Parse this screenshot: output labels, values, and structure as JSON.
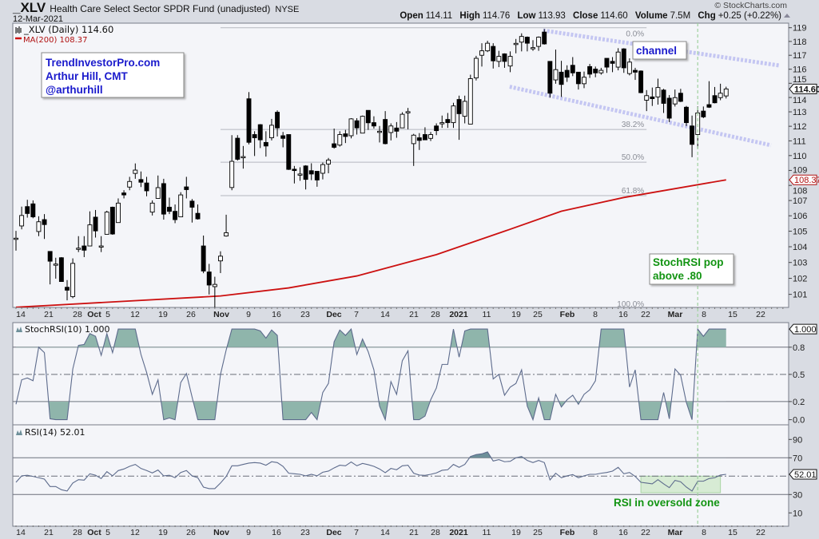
{
  "header": {
    "symbol": "_XLV",
    "name": "Health Care Select Sector SPDR Fund (unadjusted)",
    "exchange": "NYSE",
    "date": "12-Mar-2021",
    "brand": "© StockCharts.com",
    "open_label": "Open",
    "open": "114.11",
    "high_label": "High",
    "high": "114.76",
    "low_label": "Low",
    "low": "113.93",
    "close_label": "Close",
    "close": "114.60",
    "volume_label": "Volume",
    "volume": "7.5M",
    "chg_label": "Chg",
    "chg": "+0.25 (+0.22%)",
    "chg_icon": "up-triangle-icon"
  },
  "legend": {
    "price": "_XLV (Daily) 114.60",
    "ma": "MA(200) 108.37",
    "stochrsi": "StochRSI(10) 1.000",
    "rsi": "RSI(14) 52.01"
  },
  "colors": {
    "candle_down": "#000000",
    "candle_up": "#ffffff",
    "ma": "#cc1111",
    "indicator_line": "#5d6b8c",
    "indicator_fill": "#8fb5ab",
    "channel": "#c4c6f2",
    "marker_line": "#9fd29f",
    "annotation_blue": "#1a1acc",
    "annotation_green": "#129412"
  },
  "annotations": {
    "author_lines": [
      "TrendInvestorPro.com",
      "Arthur Hill, CMT",
      "@arthurhill"
    ],
    "channel": "channel",
    "stoch_lines": [
      "StochRSI pop",
      "above .80"
    ],
    "rsi_note": "RSI in oversold zone"
  },
  "chart_data": [
    {
      "type": "candlestick",
      "title": "_XLV (Daily)",
      "scale": "log",
      "ylim": [
        100,
        119.3
      ],
      "yticks": [
        101,
        102,
        103,
        104,
        105,
        106,
        107,
        108,
        109,
        110,
        111,
        112,
        113,
        114,
        115,
        116,
        117,
        118,
        119
      ],
      "last_price_label": "114.60",
      "ma_label": "108.37",
      "xticks": [
        "14",
        "21",
        "28",
        "Oct",
        "5",
        "12",
        "19",
        "26",
        "Nov",
        "9",
        "16",
        "23",
        "Dec",
        "7",
        "14",
        "21",
        "28",
        "2021",
        "11",
        "19",
        "25",
        "Feb",
        "8",
        "16",
        "22",
        "Mar",
        "8",
        "15",
        "22"
      ],
      "ohlc": [
        [
          104.55,
          105.02,
          103.75,
          104.55
        ],
        [
          105.34,
          106.6,
          105.12,
          106.02
        ],
        [
          106.6,
          107.05,
          105.88,
          106.15
        ],
        [
          106.78,
          107.01,
          105.84,
          105.93
        ],
        [
          104.98,
          105.97,
          104.68,
          105.61
        ],
        [
          105.75,
          106.11,
          104.5,
          105.43
        ],
        [
          103.7,
          103.7,
          101.62,
          103.08
        ],
        [
          102.9,
          103.3,
          101.98,
          102.9
        ],
        [
          103.3,
          103.34,
          101.8,
          101.8
        ],
        [
          101.44,
          101.89,
          100.63,
          101.26
        ],
        [
          100.86,
          103.26,
          100.76,
          102.94
        ],
        [
          103.91,
          104.68,
          103.66,
          103.91
        ],
        [
          104.05,
          104.68,
          103.34,
          103.78
        ],
        [
          104.05,
          106.29,
          104.05,
          105.41
        ],
        [
          105.91,
          106.38,
          104.59,
          105.02
        ],
        [
          104.05,
          104.68,
          103.66,
          104.05
        ],
        [
          104.8,
          106.33,
          104.8,
          106.24
        ],
        [
          106.56,
          106.6,
          104.77,
          104.82
        ],
        [
          105.56,
          107.14,
          105.56,
          106.83
        ],
        [
          107.5,
          107.68,
          107.14,
          107.37
        ],
        [
          107.89,
          108.57,
          107.68,
          108.26
        ],
        [
          108.8,
          109.47,
          108.44,
          109.02
        ],
        [
          108.39,
          108.93,
          107.89,
          108.21
        ],
        [
          108.16,
          108.57,
          107.28,
          107.64
        ],
        [
          106.24,
          107.01,
          106.02,
          106.83
        ],
        [
          107.14,
          108.66,
          107.14,
          107.85
        ],
        [
          108.12,
          108.44,
          105.75,
          106.11
        ],
        [
          106.56,
          107.19,
          106.11,
          106.29
        ],
        [
          106.29,
          106.74,
          105.52,
          105.75
        ],
        [
          105.93,
          107.55,
          105.93,
          107.37
        ],
        [
          107.9,
          108.57,
          107.14,
          107.72
        ],
        [
          106.96,
          107.1,
          105.56,
          106.56
        ],
        [
          106.16,
          106.74,
          105.75,
          105.8
        ],
        [
          104.05,
          104.72,
          102.32,
          102.46
        ],
        [
          102.4,
          102.91,
          100.99,
          101.58
        ],
        [
          101.48,
          102.1,
          100.18,
          101.62
        ],
        [
          103.1,
          103.71,
          102.33,
          103.4
        ],
        [
          104.69,
          106.07,
          104.65,
          104.9
        ],
        [
          107.86,
          111.39,
          107.68,
          109.61
        ],
        [
          111.18,
          111.39,
          109.66,
          109.75
        ],
        [
          109.93,
          110.65,
          109.12,
          109.93
        ],
        [
          113.91,
          114.38,
          110.76,
          110.9
        ],
        [
          111.43,
          111.66,
          109.97,
          111.21
        ],
        [
          112.11,
          112.15,
          110.51,
          111.07
        ],
        [
          110.89,
          111.66,
          109.93,
          110.65
        ],
        [
          111.21,
          112.51,
          111.03,
          112.07
        ],
        [
          112.97,
          113.1,
          111.3,
          111.89
        ],
        [
          111.35,
          111.61,
          110.56,
          111.17
        ],
        [
          111.43,
          111.43,
          109.03,
          109.07
        ],
        [
          109.08,
          109.3,
          108.13,
          108.99
        ],
        [
          108.76,
          109.21,
          108.31,
          108.76
        ],
        [
          109.3,
          109.35,
          107.73,
          108.4
        ],
        [
          108.98,
          109.48,
          108.35,
          108.76
        ],
        [
          108.94,
          108.94,
          107.91,
          108.36
        ],
        [
          108.81,
          109.53,
          108.4,
          109.39
        ],
        [
          109.43,
          109.84,
          108.81,
          109.7
        ],
        [
          110.8,
          111.84,
          110.47,
          110.56
        ],
        [
          110.71,
          111.66,
          110.61,
          111.43
        ],
        [
          111.48,
          111.75,
          110.85,
          111.3
        ],
        [
          111.35,
          112.56,
          111.17,
          112.51
        ],
        [
          112.38,
          112.56,
          111.43,
          111.89
        ],
        [
          111.53,
          112.74,
          111.53,
          112.69
        ],
        [
          113.1,
          113.1,
          111.75,
          112.24
        ],
        [
          112.25,
          112.69,
          111.84,
          112.02
        ],
        [
          111.66,
          112.02,
          110.89,
          111.66
        ],
        [
          112.47,
          113.05,
          110.76,
          110.81
        ],
        [
          111.57,
          112.2,
          111.03,
          112.02
        ],
        [
          111.88,
          112.29,
          111.21,
          111.66
        ],
        [
          111.89,
          112.97,
          111.89,
          112.83
        ],
        [
          113.01,
          113.27,
          111.79,
          113.01
        ],
        [
          110.81,
          111.48,
          109.3,
          111.39
        ],
        [
          111.21,
          111.53,
          110.38,
          111.03
        ],
        [
          111.43,
          111.93,
          111.07,
          111.07
        ],
        [
          111.17,
          111.61,
          110.99,
          111.43
        ],
        [
          112.02,
          112.2,
          111.39,
          111.7
        ],
        [
          112.25,
          112.74,
          111.89,
          112.25
        ],
        [
          112.47,
          112.92,
          111.89,
          112.25
        ],
        [
          112.25,
          113.63,
          111.89,
          113.41
        ],
        [
          113.86,
          114.13,
          111.07,
          112.87
        ],
        [
          112.69,
          114.13,
          112.2,
          113.73
        ],
        [
          112.15,
          115.61,
          112.15,
          115.33
        ],
        [
          115.38,
          116.96,
          115.2,
          116.78
        ],
        [
          117.0,
          117.87,
          116.19,
          117.32
        ],
        [
          117.32,
          118.05,
          117.23,
          117.87
        ],
        [
          117.64,
          117.87,
          116.05,
          116.6
        ],
        [
          116.56,
          117.32,
          116.15,
          116.92
        ],
        [
          117.1,
          117.14,
          116.1,
          116.56
        ],
        [
          116.23,
          117.28,
          115.79,
          116.92
        ],
        [
          117.86,
          118.18,
          117.14,
          117.86
        ],
        [
          117.95,
          118.59,
          117.28,
          118.36
        ],
        [
          118.31,
          118.36,
          117.28,
          117.87
        ],
        [
          117.55,
          118.09,
          117.32,
          117.55
        ],
        [
          117.64,
          118.36,
          117.32,
          118.31
        ],
        [
          118.68,
          118.9,
          117.77,
          117.82
        ],
        [
          116.56,
          116.56,
          113.99,
          114.3
        ],
        [
          115.24,
          117.41,
          114.97,
          115.97
        ],
        [
          115.79,
          116.6,
          114.04,
          114.92
        ],
        [
          115.92,
          116.28,
          115.1,
          115.43
        ],
        [
          116.28,
          116.87,
          115.51,
          115.74
        ],
        [
          115.79,
          115.79,
          114.56,
          114.97
        ],
        [
          114.97,
          115.83,
          114.66,
          115.43
        ],
        [
          116.19,
          116.38,
          115.38,
          115.65
        ],
        [
          116.01,
          116.19,
          115.43,
          115.74
        ],
        [
          115.74,
          116.1,
          115.61,
          115.92
        ],
        [
          116.78,
          116.78,
          115.74,
          116.15
        ],
        [
          116.56,
          116.87,
          115.79,
          116.42
        ],
        [
          116.15,
          117.51,
          115.92,
          117.23
        ],
        [
          117.46,
          117.51,
          115.74,
          116.1
        ],
        [
          115.69,
          116.78,
          115.56,
          116.51
        ],
        [
          115.92,
          116.1,
          115.24,
          115.79
        ],
        [
          115.87,
          115.92,
          114.3,
          114.34
        ],
        [
          113.81,
          114.52,
          113.05,
          114.13
        ],
        [
          114.04,
          114.7,
          113.41,
          113.92
        ],
        [
          114.04,
          115.33,
          113.5,
          114.7
        ],
        [
          114.52,
          114.61,
          112.92,
          113.59
        ],
        [
          113.95,
          114.17,
          112.29,
          112.56
        ],
        [
          113.55,
          114.56,
          113.37,
          113.99
        ],
        [
          114.3,
          114.61,
          113.68,
          113.73
        ],
        [
          113.32,
          113.41,
          112.02,
          112.25
        ],
        [
          112.02,
          112.74,
          109.89,
          110.76
        ],
        [
          111.43,
          113.37,
          110.49,
          112.92
        ],
        [
          113.05,
          113.37,
          112.56,
          112.65
        ],
        [
          113.5,
          115.15,
          113.27,
          113.32
        ],
        [
          114.13,
          114.74,
          113.59,
          113.63
        ],
        [
          113.99,
          114.97,
          113.81,
          114.3
        ],
        [
          114.11,
          114.76,
          113.93,
          114.6
        ]
      ],
      "ma200": [
        [
          0,
          100.2
        ],
        [
          36,
          100.9
        ],
        [
          48,
          101.4
        ],
        [
          60,
          102.15
        ],
        [
          74,
          103.5
        ],
        [
          86,
          105.0
        ],
        [
          96,
          106.3
        ],
        [
          107,
          107.2
        ],
        [
          125,
          108.37
        ]
      ],
      "fib_high": 119.0,
      "fib_low": 100.1,
      "fib_levels": [
        {
          "pct": 0,
          "label": "0.0%"
        },
        {
          "pct": 0.382,
          "label": "38.2%"
        },
        {
          "pct": 0.5,
          "label": "50.0%"
        },
        {
          "pct": 0.618,
          "label": "61.8%"
        },
        {
          "pct": 1,
          "label": "100.0%"
        }
      ],
      "channel_upper": [
        [
          92.8,
          118.8
        ],
        [
          134.3,
          116.27
        ]
      ],
      "channel_lower": [
        [
          86.9,
          114.76
        ],
        [
          132.9,
          110.7
        ]
      ],
      "marker_index": 120
    },
    {
      "type": "line",
      "title": "StochRSI(10)",
      "ylim": [
        0,
        1
      ],
      "yticks": [
        "0.0",
        "0.2",
        "0.5",
        "0.8"
      ],
      "yticks_values": [
        0,
        0.2,
        0.5,
        0.8
      ],
      "last_label": "1.000",
      "values": [
        0.17,
        0.44,
        0.46,
        0.43,
        0.8,
        0.74,
        0.01,
        0,
        0,
        0,
        0.56,
        0.82,
        0.83,
        0.95,
        0.92,
        0.71,
        0.95,
        0.74,
        1,
        1,
        1,
        1,
        0.72,
        0.52,
        0.28,
        0.44,
        0,
        0.02,
        0,
        0.41,
        0.51,
        0.25,
        0,
        0,
        0,
        0,
        0.5,
        0.77,
        1,
        1,
        1,
        1,
        1,
        0.98,
        0.9,
        0.99,
        0.93,
        0,
        0,
        0,
        0,
        0,
        0.08,
        0,
        0.3,
        0.4,
        0.86,
        0.99,
        0.93,
        1,
        0.72,
        0.89,
        0.75,
        0.55,
        0.15,
        0,
        0.42,
        0.28,
        0.65,
        0.76,
        0,
        0,
        0.04,
        0.22,
        0.35,
        0.61,
        0.61,
        1,
        0.69,
        0.98,
        1,
        1,
        1,
        1,
        0.45,
        0.5,
        0.27,
        0.36,
        0.4,
        0.55,
        0.15,
        0,
        0.24,
        0,
        0,
        0.28,
        0.14,
        0.22,
        0.27,
        0.17,
        0.28,
        0.33,
        0.43,
        1,
        1,
        1,
        1,
        1,
        0.36,
        0.55,
        0,
        0,
        0,
        0,
        0.3,
        0.01,
        0.56,
        0.49,
        0.19,
        0,
        1,
        0.92,
        1,
        1,
        1,
        1
      ],
      "upper_band": 0.8,
      "lower_band": 0.2,
      "mid": 0.5
    },
    {
      "type": "line",
      "title": "RSI(14)",
      "ylim": [
        0,
        100
      ],
      "yticks": [
        "10",
        "30",
        "70",
        "90"
      ],
      "yticks_values": [
        10,
        30,
        70,
        90
      ],
      "last_label": "52.01",
      "values": [
        43.3,
        50.3,
        51,
        49.7,
        48.3,
        46.8,
        38.7,
        38.7,
        35.2,
        33.8,
        42.5,
        46.2,
        45.7,
        52.6,
        51,
        47.4,
        54.9,
        50.3,
        56.1,
        57.8,
        60.7,
        62.8,
        58.4,
        56.1,
        53.5,
        56.7,
        50.3,
        51,
        48.3,
        54,
        56.1,
        50.3,
        48.3,
        38.1,
        36.4,
        36.4,
        42.5,
        49.7,
        61.3,
        61.3,
        62.8,
        64.2,
        64.8,
        64.2,
        61.9,
        65.7,
        64.8,
        60.7,
        53.2,
        52.6,
        52,
        50.3,
        52,
        50.3,
        54.3,
        55.5,
        59,
        61.9,
        61.3,
        65.4,
        61.3,
        63.9,
        62.5,
        60.7,
        57.8,
        53.8,
        58.4,
        57,
        61.3,
        61.9,
        53.2,
        51.2,
        50.9,
        52,
        53.5,
        56.4,
        57,
        62.8,
        59.6,
        62.8,
        71.4,
        73.5,
        74.3,
        76.4,
        66.5,
        68,
        65.7,
        66.2,
        70,
        71.4,
        67.1,
        64.8,
        67.1,
        64.8,
        45.9,
        53.2,
        48.3,
        50.3,
        51.7,
        48.3,
        50.3,
        52,
        52,
        53.2,
        54,
        55.5,
        59.6,
        52.6,
        54,
        49.7,
        43.3,
        42.5,
        41.6,
        46.2,
        41.6,
        37.5,
        45.4,
        43.9,
        38.1,
        33.8,
        44.5,
        44.5,
        47.4,
        48.3,
        51.2,
        52.01
      ],
      "upper_band": 70,
      "lower_band": 30,
      "mid": 50,
      "highlight_range": [
        110,
        124,
        32,
        50
      ]
    }
  ]
}
